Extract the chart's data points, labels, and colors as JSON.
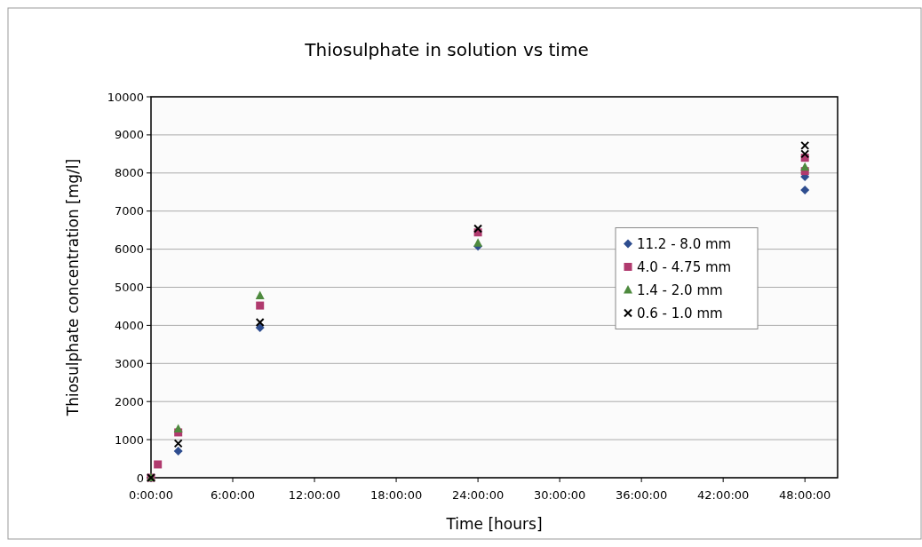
{
  "chart_data": {
    "type": "scatter",
    "title": "Thiosulphate in solution vs time",
    "xlabel": "Time [hours]",
    "ylabel": "Thiosulphate concentration [mg/l]",
    "xlim": [
      0,
      50.4
    ],
    "xticks": [
      {
        "value": 0,
        "label": "0:00:00"
      },
      {
        "value": 6,
        "label": "6:00:00"
      },
      {
        "value": 12,
        "label": "12:00:00"
      },
      {
        "value": 18,
        "label": "18:00:00"
      },
      {
        "value": 24,
        "label": "24:00:00"
      },
      {
        "value": 30,
        "label": "30:00:00"
      },
      {
        "value": 36,
        "label": "36:00:00"
      },
      {
        "value": 42,
        "label": "42:00:00"
      },
      {
        "value": 48,
        "label": "48:00:00"
      }
    ],
    "ylim": [
      0,
      10000
    ],
    "yticks": [
      0,
      1000,
      2000,
      3000,
      4000,
      5000,
      6000,
      7000,
      8000,
      9000,
      10000
    ],
    "grid": "y",
    "legend": "right",
    "series": [
      {
        "name": "11.2 - 8.0 mm",
        "color": "#2e4d8f",
        "marker": "diamond",
        "x": [
          0,
          2,
          8,
          24,
          48,
          48
        ],
        "values": [
          0,
          700,
          3940,
          6080,
          7900,
          7550
        ]
      },
      {
        "name": "4.0 - 4.75 mm",
        "color": "#b03a6e",
        "marker": "square",
        "x": [
          0,
          0.5,
          2,
          8,
          24,
          48,
          48
        ],
        "values": [
          0,
          350,
          1190,
          4520,
          6440,
          8400,
          8050
        ]
      },
      {
        "name": "1.4 - 2.0 mm",
        "color": "#4e8a3e",
        "marker": "triangle",
        "x": [
          0,
          2,
          8,
          24,
          48
        ],
        "values": [
          0,
          1280,
          4780,
          6160,
          8150
        ]
      },
      {
        "name": "0.6 - 1.0 mm",
        "color": "#000000",
        "marker": "cross",
        "x": [
          0,
          2,
          8,
          24,
          48,
          48
        ],
        "values": [
          0,
          900,
          4080,
          6540,
          8720,
          8500
        ]
      }
    ]
  }
}
